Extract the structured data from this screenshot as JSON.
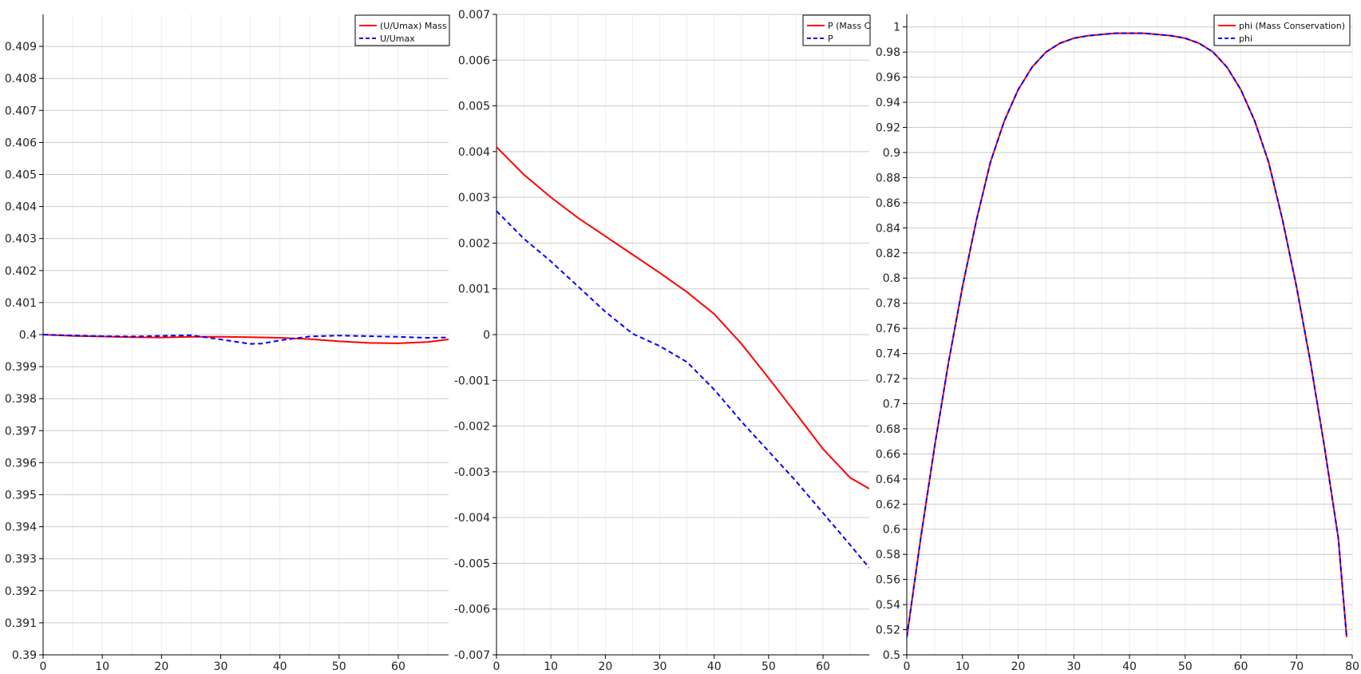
{
  "colors": {
    "background": "#ffffff",
    "grid_major": "#c9c9c9",
    "grid_minor": "#eeeeee",
    "axis": "#000000",
    "series_solid": "#ff0000",
    "series_dashed": "#0000ff"
  },
  "chart_data": [
    {
      "type": "line",
      "title": "",
      "xlabel": "",
      "ylabel": "",
      "xlim": [
        0,
        68.5
      ],
      "ylim": [
        0.39,
        0.41
      ],
      "xticks": [
        0,
        10,
        20,
        30,
        40,
        50,
        60
      ],
      "yticks": [
        0.39,
        0.391,
        0.392,
        0.393,
        0.394,
        0.395,
        0.396,
        0.397,
        0.398,
        0.399,
        0.4,
        0.401,
        0.402,
        0.403,
        0.404,
        0.405,
        0.406,
        0.407,
        0.408,
        0.409
      ],
      "ytick_labels": [
        "0.39",
        "0.391",
        "0.392",
        "0.393",
        "0.394",
        "0.395",
        "0.396",
        "0.397",
        "0.398",
        "0.399",
        "0.4",
        "0.401",
        "0.402",
        "0.403",
        "0.404",
        "0.405",
        "0.406",
        "0.407",
        "0.408",
        "0.409"
      ],
      "grid": true,
      "legend_position": "top-right",
      "series": [
        {
          "name": "(U/Umax) Mass",
          "style": "solid",
          "color": "#ff0000",
          "x": [
            0,
            5,
            10,
            15,
            20,
            25,
            30,
            35,
            40,
            45,
            50,
            55,
            60,
            65,
            68.5
          ],
          "y": [
            0.4,
            0.39996,
            0.39994,
            0.39992,
            0.39991,
            0.39993,
            0.39993,
            0.39992,
            0.3999,
            0.39986,
            0.39979,
            0.39974,
            0.39973,
            0.39977,
            0.39985
          ]
        },
        {
          "name": "U/Umax",
          "style": "dashed",
          "color": "#0000ff",
          "x": [
            0,
            5,
            10,
            15,
            20,
            25,
            30,
            35,
            37,
            40,
            45,
            50,
            55,
            60,
            65,
            68.5
          ],
          "y": [
            0.4,
            0.39997,
            0.39995,
            0.39994,
            0.39996,
            0.39998,
            0.39985,
            0.39971,
            0.39972,
            0.39982,
            0.39994,
            0.39997,
            0.39995,
            0.39993,
            0.3999,
            0.39991
          ]
        }
      ]
    },
    {
      "type": "line",
      "title": "",
      "xlabel": "",
      "ylabel": "",
      "xlim": [
        0,
        68.5
      ],
      "ylim": [
        -0.007,
        0.007
      ],
      "xticks": [
        0,
        10,
        20,
        30,
        40,
        50,
        60
      ],
      "yticks": [
        -0.007,
        -0.006,
        -0.005,
        -0.004,
        -0.003,
        -0.002,
        -0.001,
        0,
        0.001,
        0.002,
        0.003,
        0.004,
        0.005,
        0.006,
        0.007
      ],
      "ytick_labels": [
        "-0.007",
        "-0.006",
        "-0.005",
        "-0.004",
        "-0.003",
        "-0.002",
        "-0.001",
        "0",
        "0.001",
        "0.002",
        "0.003",
        "0.004",
        "0.005",
        "0.006",
        "0.007"
      ],
      "grid": true,
      "legend_position": "top-right",
      "series": [
        {
          "name": "P (Mass C",
          "style": "solid",
          "color": "#ff0000",
          "x": [
            0,
            5,
            10,
            15,
            20,
            25,
            30,
            35,
            40,
            45,
            50,
            55,
            60,
            65,
            68.5
          ],
          "y": [
            0.0041,
            0.0035,
            0.003,
            0.00255,
            0.00215,
            0.00175,
            0.00135,
            0.00093,
            0.00045,
            -0.0002,
            -0.00095,
            -0.00172,
            -0.0025,
            -0.00313,
            -0.00337
          ]
        },
        {
          "name": "P",
          "style": "dashed",
          "color": "#0000ff",
          "x": [
            0,
            5,
            10,
            15,
            20,
            25,
            30,
            35,
            40,
            45,
            50,
            55,
            60,
            65,
            68.5
          ],
          "y": [
            0.0027,
            0.0021,
            0.0016,
            0.00105,
            0.0005,
            2e-05,
            -0.00025,
            -0.0006,
            -0.0012,
            -0.0019,
            -0.00255,
            -0.0032,
            -0.0039,
            -0.0046,
            -0.0051
          ]
        }
      ]
    },
    {
      "type": "line",
      "title": "",
      "xlabel": "",
      "ylabel": "",
      "xlim": [
        0,
        80
      ],
      "ylim": [
        0.5,
        1.01
      ],
      "xticks": [
        0,
        10,
        20,
        30,
        40,
        50,
        60,
        70,
        80
      ],
      "yticks": [
        0.5,
        0.52,
        0.54,
        0.56,
        0.58,
        0.6,
        0.62,
        0.64,
        0.66,
        0.68,
        0.7,
        0.72,
        0.74,
        0.76,
        0.78,
        0.8,
        0.82,
        0.84,
        0.86,
        0.88,
        0.9,
        0.92,
        0.94,
        0.96,
        0.98,
        1
      ],
      "ytick_labels": [
        "0.5",
        "0.52",
        "0.54",
        "0.56",
        "0.58",
        "0.6",
        "0.62",
        "0.64",
        "0.66",
        "0.68",
        "0.7",
        "0.72",
        "0.74",
        "0.76",
        "0.78",
        "0.8",
        "0.82",
        "0.84",
        "0.86",
        "0.88",
        "0.9",
        "0.92",
        "0.94",
        "0.96",
        "0.98",
        "1"
      ],
      "grid": true,
      "legend_position": "top-right",
      "series": [
        {
          "name": "phi (Mass Conservation)",
          "style": "solid",
          "color": "#ff0000",
          "x": [
            0,
            2.5,
            5,
            7.5,
            10,
            12.5,
            15,
            17.5,
            20,
            22.5,
            25,
            27.5,
            30,
            32.5,
            35,
            37.5,
            40,
            42.5,
            45,
            47.5,
            50,
            52.5,
            55,
            57.5,
            60,
            62.5,
            65,
            67.5,
            70,
            72.5,
            75,
            77.5,
            79
          ],
          "y": [
            0.514,
            0.593,
            0.666,
            0.733,
            0.793,
            0.846,
            0.892,
            0.925,
            0.95,
            0.968,
            0.98,
            0.987,
            0.991,
            0.993,
            0.994,
            0.995,
            0.995,
            0.995,
            0.994,
            0.993,
            0.991,
            0.987,
            0.98,
            0.968,
            0.95,
            0.925,
            0.892,
            0.846,
            0.793,
            0.733,
            0.666,
            0.593,
            0.514
          ]
        },
        {
          "name": "phi",
          "style": "dashed",
          "color": "#0000ff",
          "x": [
            0,
            2.5,
            5,
            7.5,
            10,
            12.5,
            15,
            17.5,
            20,
            22.5,
            25,
            27.5,
            30,
            32.5,
            35,
            37.5,
            40,
            42.5,
            45,
            47.5,
            50,
            52.5,
            55,
            57.5,
            60,
            62.5,
            65,
            67.5,
            70,
            72.5,
            75,
            77.5,
            79
          ],
          "y": [
            0.514,
            0.593,
            0.666,
            0.733,
            0.793,
            0.846,
            0.892,
            0.925,
            0.95,
            0.968,
            0.98,
            0.987,
            0.991,
            0.993,
            0.994,
            0.995,
            0.995,
            0.995,
            0.994,
            0.993,
            0.991,
            0.987,
            0.98,
            0.968,
            0.95,
            0.925,
            0.892,
            0.846,
            0.793,
            0.733,
            0.666,
            0.593,
            0.514
          ]
        }
      ]
    }
  ]
}
